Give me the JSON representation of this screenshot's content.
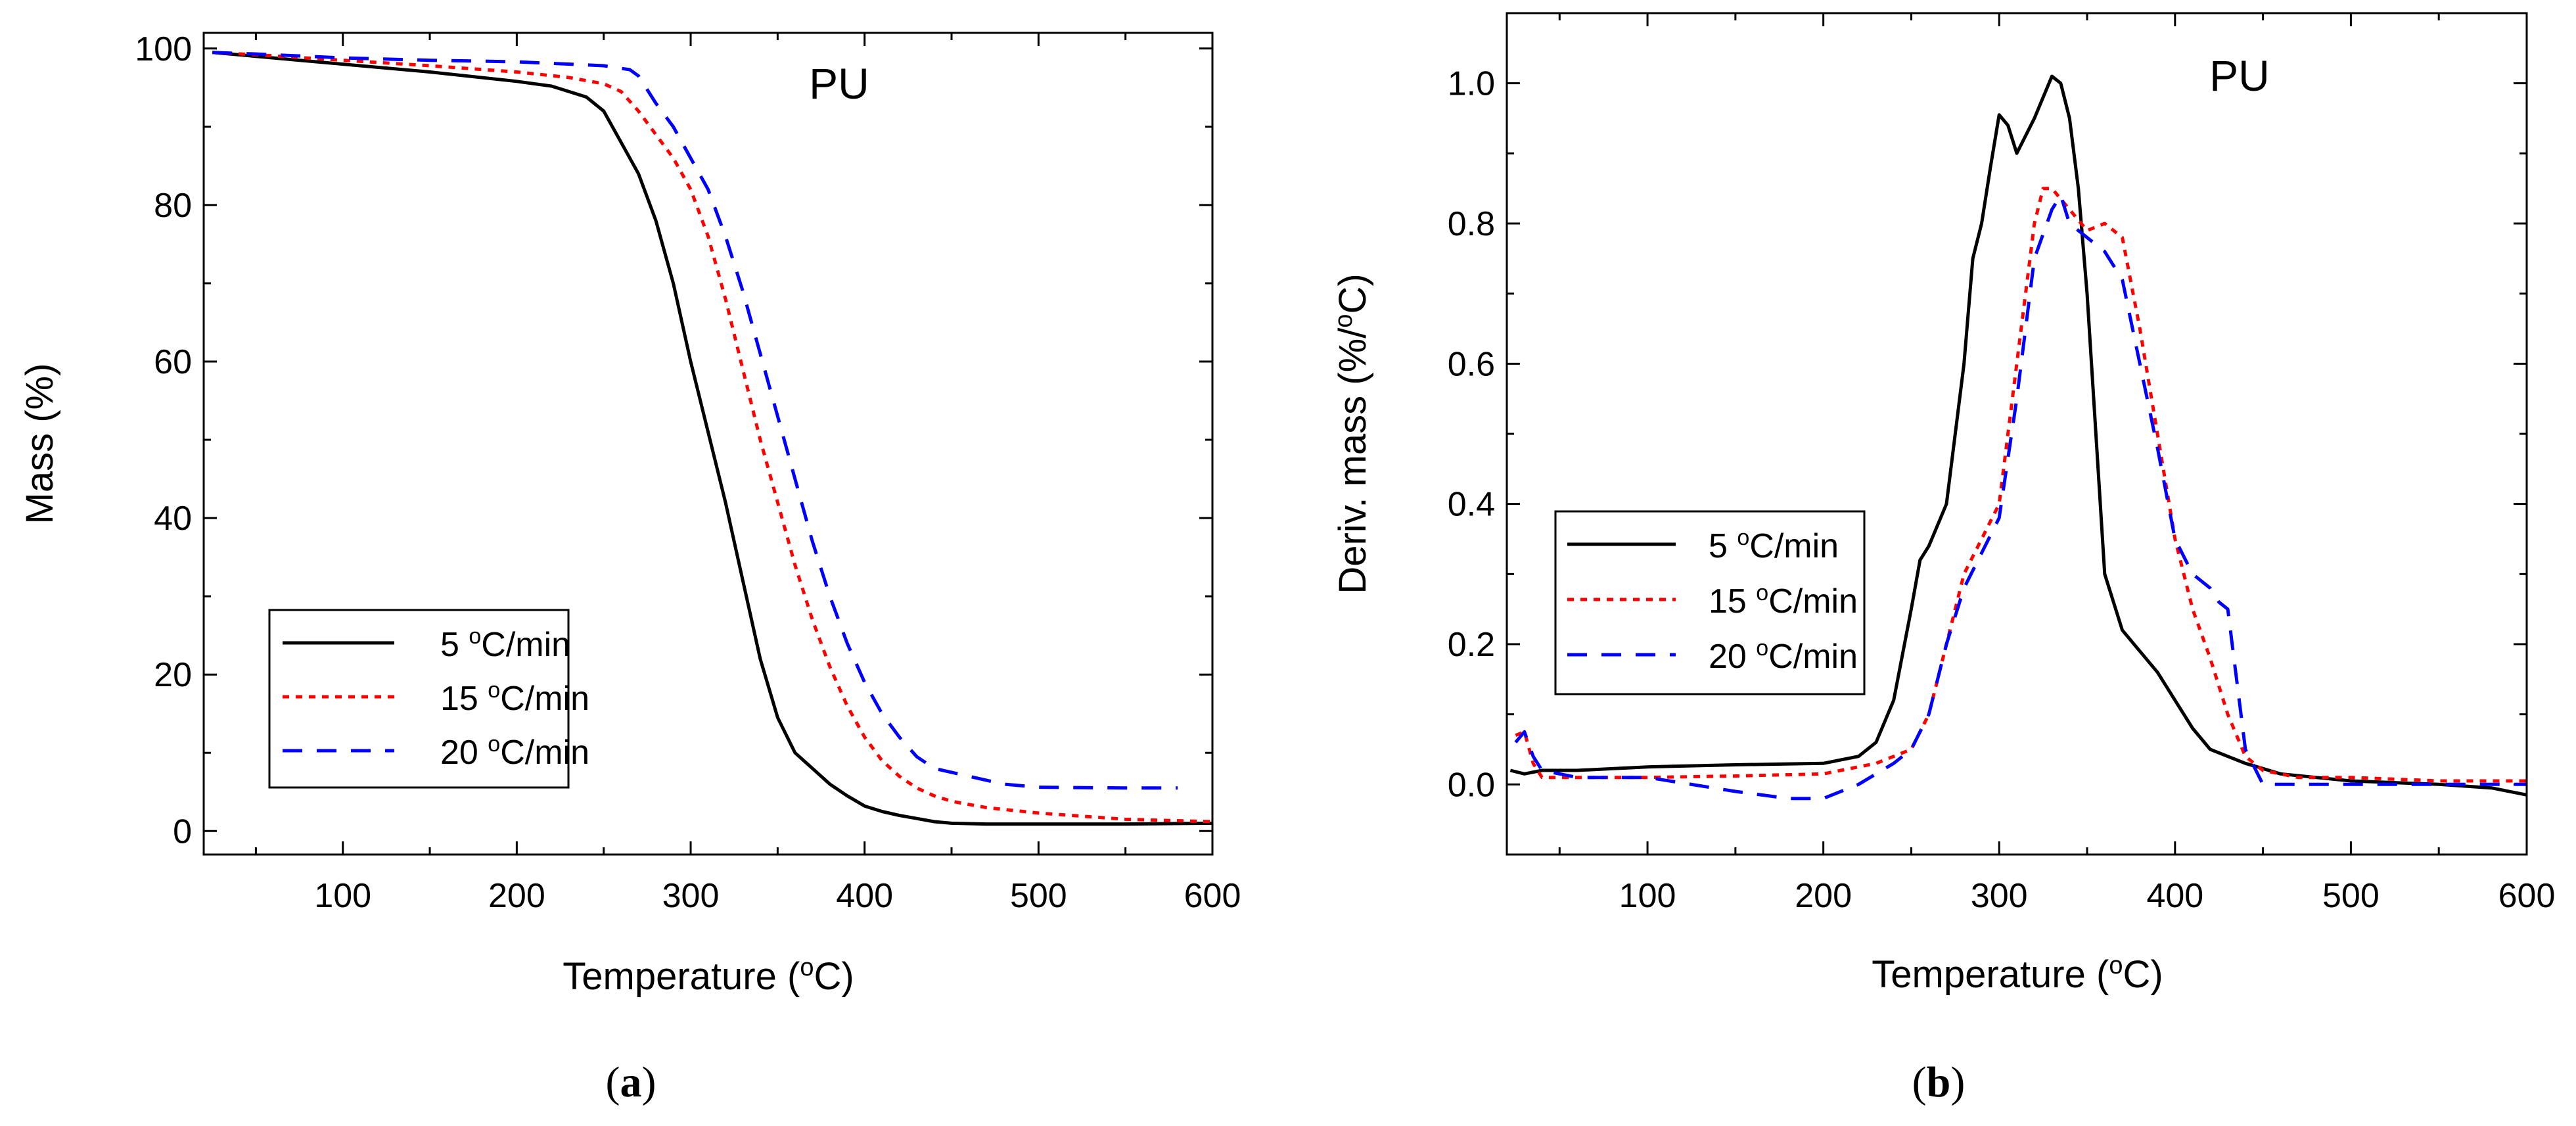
{
  "chart_data": [
    {
      "type": "line",
      "title": "PU",
      "xlabel": "Temperature",
      "xunit": "C",
      "ylabel": "Mass",
      "yunit": "%",
      "xlim": [
        20,
        600
      ],
      "ylim": [
        -3,
        102
      ],
      "xticks": [
        100,
        200,
        300,
        400,
        500,
        600
      ],
      "yticks": [
        0,
        20,
        40,
        60,
        80,
        100
      ],
      "xminor": [
        50,
        150,
        250,
        350,
        450,
        550
      ],
      "yminor": [
        10,
        30,
        50,
        70,
        90
      ],
      "legend_position": "lower-left",
      "caption": "a",
      "series": [
        {
          "name": "5 °C/min",
          "value": "5",
          "unit": "C/min",
          "color": "#000000",
          "dash": "solid",
          "x": [
            25,
            50,
            100,
            150,
            200,
            220,
            240,
            250,
            260,
            270,
            280,
            290,
            300,
            310,
            320,
            330,
            340,
            350,
            360,
            370,
            380,
            390,
            400,
            410,
            420,
            430,
            440,
            450,
            470,
            500,
            550,
            600
          ],
          "y": [
            99.5,
            99.0,
            98.0,
            97.0,
            95.8,
            95.2,
            93.8,
            92.0,
            88.0,
            84.0,
            78.0,
            70.0,
            60.0,
            51.0,
            42.0,
            32.0,
            22.0,
            14.5,
            10.0,
            8.0,
            6.0,
            4.5,
            3.2,
            2.5,
            2.0,
            1.6,
            1.2,
            1.0,
            0.9,
            0.9,
            0.9,
            1.0
          ]
        },
        {
          "name": "15 °C/min",
          "value": "15",
          "unit": "C/min",
          "color": "#ff0000",
          "dash": "dot",
          "x": [
            25,
            50,
            100,
            150,
            200,
            230,
            250,
            260,
            270,
            280,
            290,
            300,
            310,
            320,
            330,
            340,
            350,
            360,
            370,
            380,
            390,
            400,
            410,
            420,
            430,
            440,
            450,
            470,
            500,
            550,
            600
          ],
          "y": [
            99.5,
            99.2,
            98.5,
            97.8,
            97.0,
            96.3,
            95.5,
            94.5,
            92.0,
            89.0,
            86.0,
            82.0,
            76.0,
            68.0,
            59.0,
            50.0,
            42.0,
            34.0,
            27.0,
            21.0,
            16.0,
            12.0,
            9.0,
            7.0,
            5.5,
            4.5,
            3.8,
            3.0,
            2.3,
            1.5,
            1.2
          ]
        },
        {
          "name": "20 °C/min",
          "value": "20",
          "unit": "C/min",
          "color": "#0000ff",
          "dash": "dash",
          "x": [
            25,
            50,
            100,
            150,
            200,
            250,
            265,
            270,
            280,
            290,
            300,
            310,
            320,
            330,
            340,
            350,
            360,
            370,
            380,
            390,
            400,
            410,
            420,
            430,
            440,
            460,
            480,
            500,
            550,
            580
          ],
          "y": [
            99.5,
            99.3,
            98.8,
            98.5,
            98.3,
            97.8,
            97.3,
            96.5,
            93.0,
            90.0,
            86.0,
            82.0,
            76.0,
            69.0,
            61.0,
            53.0,
            45.0,
            37.0,
            30.0,
            24.0,
            19.0,
            15.0,
            12.0,
            9.5,
            8.0,
            7.0,
            6.0,
            5.6,
            5.5,
            5.5
          ]
        }
      ]
    },
    {
      "type": "line",
      "title": "PU",
      "xlabel": "Temperature",
      "xunit": "C",
      "ylabel": "Deriv. mass",
      "yunit": "%/C",
      "xlim": [
        20,
        600
      ],
      "ylim": [
        -0.1,
        1.1
      ],
      "xticks": [
        100,
        200,
        300,
        400,
        500,
        600
      ],
      "yticks": [
        0.0,
        0.2,
        0.4,
        0.6,
        0.8,
        1.0
      ],
      "xminor": [
        50,
        150,
        250,
        350,
        450,
        550
      ],
      "yminor": [
        -0.1,
        0.1,
        0.3,
        0.5,
        0.7,
        0.9
      ],
      "legend_position": "center-left",
      "caption": "b",
      "series": [
        {
          "name": "5 °C/min",
          "value": "5",
          "unit": "C/min",
          "color": "#000000",
          "dash": "solid",
          "x": [
            22,
            30,
            40,
            60,
            100,
            150,
            200,
            220,
            230,
            240,
            250,
            255,
            260,
            270,
            280,
            285,
            290,
            295,
            300,
            305,
            310,
            320,
            330,
            335,
            340,
            345,
            350,
            355,
            360,
            370,
            380,
            390,
            400,
            410,
            420,
            430,
            440,
            460,
            500,
            550,
            580,
            600
          ],
          "y": [
            0.02,
            0.015,
            0.02,
            0.02,
            0.025,
            0.028,
            0.03,
            0.04,
            0.06,
            0.12,
            0.25,
            0.32,
            0.34,
            0.4,
            0.6,
            0.75,
            0.8,
            0.88,
            0.955,
            0.94,
            0.9,
            0.95,
            1.01,
            1.0,
            0.95,
            0.85,
            0.7,
            0.5,
            0.3,
            0.22,
            0.19,
            0.16,
            0.12,
            0.08,
            0.05,
            0.04,
            0.03,
            0.015,
            0.005,
            0.0,
            -0.005,
            -0.015
          ]
        },
        {
          "name": "15 °C/min",
          "value": "15",
          "unit": "C/min",
          "color": "#ff0000",
          "dash": "dot",
          "x": [
            25,
            30,
            35,
            40,
            60,
            100,
            150,
            200,
            230,
            250,
            260,
            270,
            280,
            290,
            300,
            310,
            320,
            325,
            330,
            340,
            350,
            360,
            370,
            380,
            390,
            400,
            410,
            420,
            430,
            440,
            450,
            470,
            500,
            550,
            600
          ],
          "y": [
            0.07,
            0.075,
            0.03,
            0.01,
            0.01,
            0.01,
            0.012,
            0.015,
            0.03,
            0.05,
            0.1,
            0.2,
            0.3,
            0.35,
            0.4,
            0.6,
            0.8,
            0.85,
            0.85,
            0.82,
            0.79,
            0.8,
            0.78,
            0.65,
            0.5,
            0.35,
            0.25,
            0.18,
            0.1,
            0.04,
            0.02,
            0.01,
            0.01,
            0.005,
            0.005
          ]
        },
        {
          "name": "20 °C/min",
          "value": "20",
          "unit": "C/min",
          "color": "#0000ff",
          "dash": "dash",
          "x": [
            25,
            30,
            35,
            40,
            60,
            100,
            150,
            180,
            200,
            220,
            240,
            250,
            260,
            270,
            280,
            290,
            300,
            310,
            320,
            330,
            335,
            340,
            350,
            360,
            370,
            380,
            390,
            400,
            410,
            420,
            425,
            430,
            440,
            450,
            470,
            500,
            550,
            600
          ],
          "y": [
            0.06,
            0.075,
            0.04,
            0.02,
            0.01,
            0.01,
            -0.01,
            -0.02,
            -0.02,
            0.0,
            0.03,
            0.05,
            0.1,
            0.2,
            0.28,
            0.33,
            0.38,
            0.55,
            0.75,
            0.82,
            0.84,
            0.8,
            0.78,
            0.76,
            0.72,
            0.6,
            0.48,
            0.35,
            0.3,
            0.28,
            0.26,
            0.25,
            0.05,
            0.0,
            0.0,
            0.0,
            0.0,
            0.0
          ]
        }
      ]
    }
  ]
}
